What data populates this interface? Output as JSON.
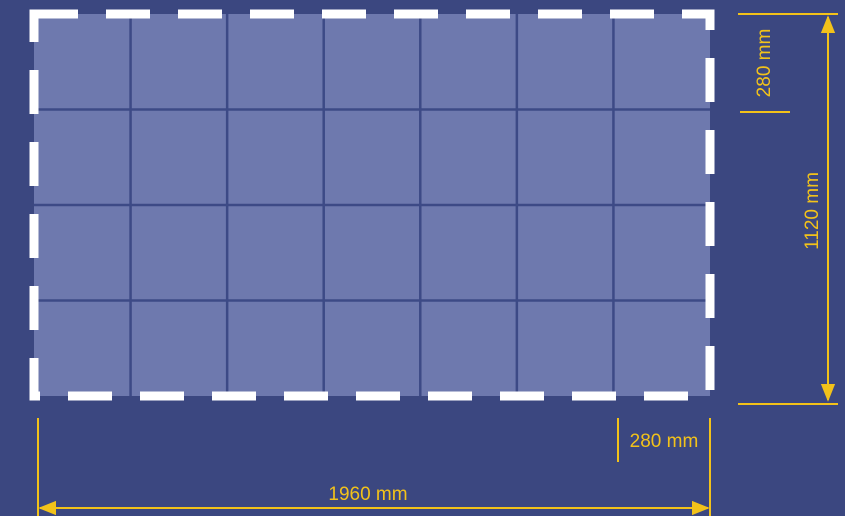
{
  "colors": {
    "background": "#3b4780",
    "panel_fill": "#6e79ae",
    "grid_line": "#3d4a86",
    "dashed_border": "#ffffff",
    "dimension": "#f2c21a"
  },
  "grid": {
    "columns": 7,
    "rows": 4
  },
  "dimensions": {
    "width_total": "1960 mm",
    "height_total": "1120 mm",
    "tile_height": "280 mm",
    "tile_width": "280 mm"
  }
}
